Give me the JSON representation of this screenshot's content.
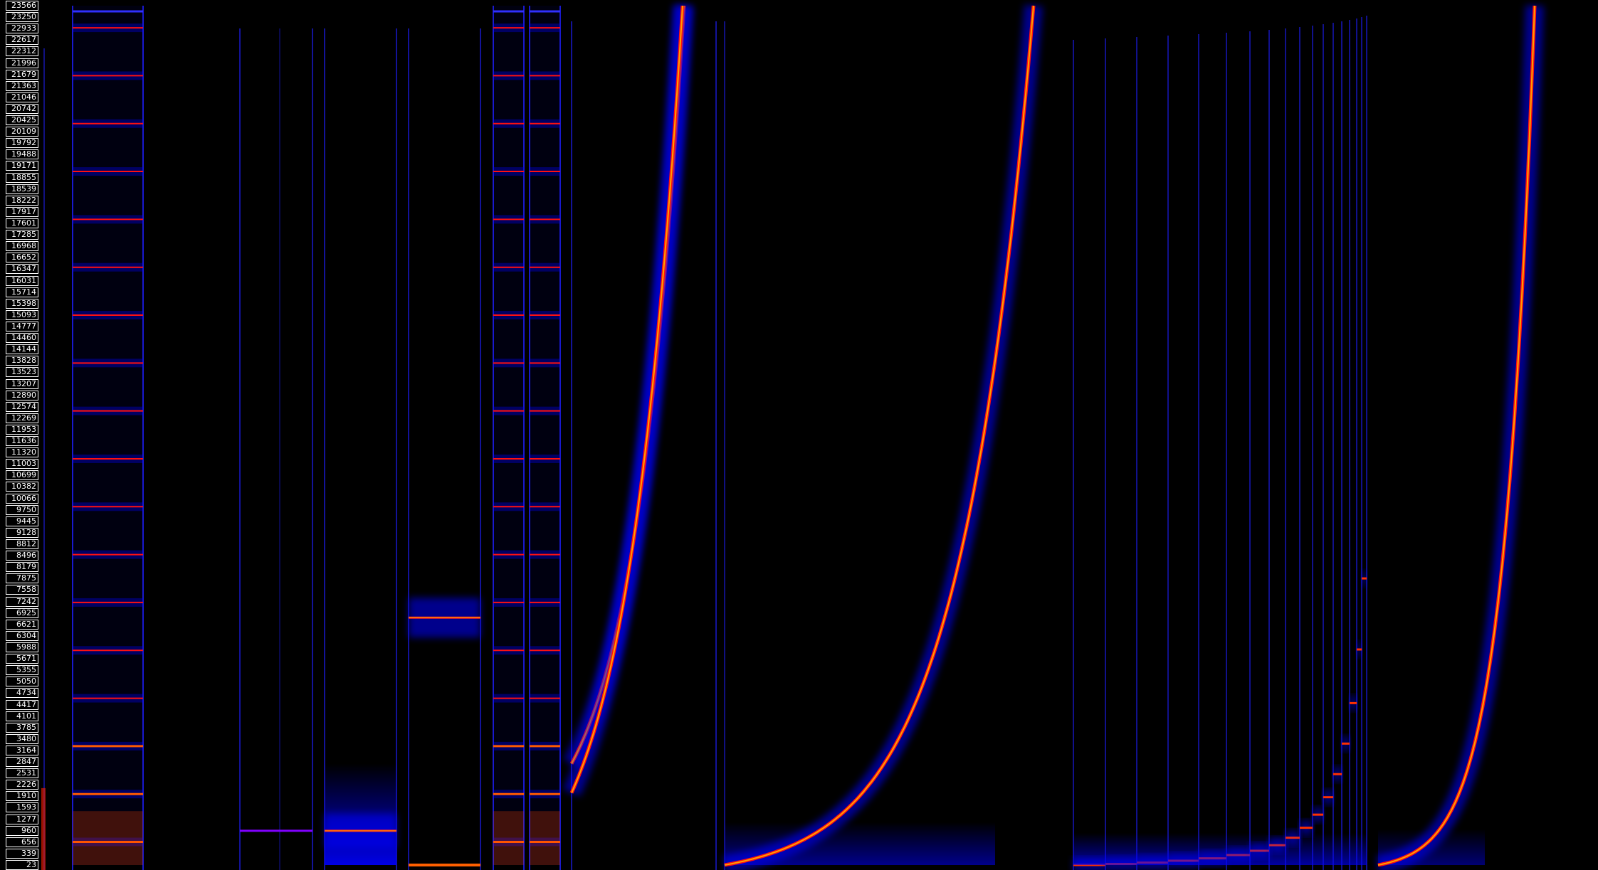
{
  "chart_data": {
    "type": "heatmap",
    "title": "",
    "xlabel": "",
    "ylabel": "",
    "ylim": [
      23,
      23566
    ],
    "colormap": [
      "#000000",
      "#0000ff",
      "#ff0000",
      "#ff8800"
    ],
    "y_tick_labels": [
      "23566",
      "23250",
      "22933",
      "22617",
      "22312",
      "21996",
      "21679",
      "21363",
      "21046",
      "20742",
      "20425",
      "20109",
      "19792",
      "19488",
      "19171",
      "18855",
      "18539",
      "18222",
      "17917",
      "17601",
      "17285",
      "16968",
      "16652",
      "16347",
      "16031",
      "15714",
      "15398",
      "15093",
      "14777",
      "14460",
      "14144",
      "13828",
      "13523",
      "13207",
      "12890",
      "12574",
      "12269",
      "11953",
      "11636",
      "11320",
      "11003",
      "10699",
      "10382",
      "10066",
      "9750",
      "9445",
      "9128",
      "8812",
      "8496",
      "8179",
      "7875",
      "7558",
      "7242",
      "6925",
      "6621",
      "6304",
      "5988",
      "5671",
      "5355",
      "5050",
      "4734",
      "4417",
      "4101",
      "3785",
      "3480",
      "3164",
      "2847",
      "2531",
      "2226",
      "1910",
      "1593",
      "1277",
      "960",
      "656",
      "339",
      "23"
    ],
    "segments": [
      {
        "kind": "impulse",
        "freq_hz": 960
      },
      {
        "kind": "harmonic_stack",
        "fundamental_hz": 656
      },
      {
        "kind": "gap"
      },
      {
        "kind": "tone",
        "freq_hz": 960
      },
      {
        "kind": "tone",
        "freq_hz": 960
      },
      {
        "kind": "tone",
        "freq_hz": 6800
      },
      {
        "kind": "harmonic_stack",
        "fundamental_hz": 656
      },
      {
        "kind": "harmonic_stack",
        "fundamental_hz": 656
      },
      {
        "kind": "sweep",
        "start_hz": 2800,
        "end_hz": 23566
      },
      {
        "kind": "sweep",
        "start_hz": 2000,
        "end_hz": 23566
      },
      {
        "kind": "sweep",
        "start_hz": 23,
        "end_hz": 23566
      },
      {
        "kind": "stepped_tones",
        "start_hz": 23,
        "end_hz": 7875
      },
      {
        "kind": "sweep",
        "start_hz": 23,
        "end_hz": 23566
      }
    ]
  }
}
